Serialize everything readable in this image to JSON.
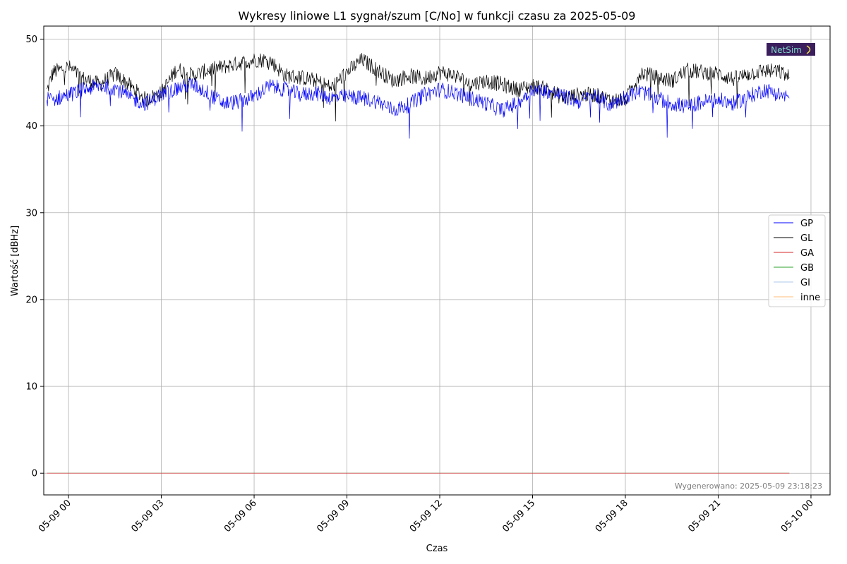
{
  "chart_data": {
    "type": "line",
    "title": "Wykresy liniowe L1 sygnał/szum [C/No] w funkcji czasu za 2025-05-09",
    "xlabel": "Czas",
    "ylabel": "Wartość [dBHz]",
    "x_range": [
      "2025-05-08 23:12",
      "2025-05-10 00:37"
    ],
    "ylim": [
      -2.5,
      51.5
    ],
    "grid": true,
    "legend_position": "right",
    "x_ticks": [
      {
        "t": "2025-05-09 00:00",
        "label": "05-09 00"
      },
      {
        "t": "2025-05-09 03:00",
        "label": "05-09 03"
      },
      {
        "t": "2025-05-09 06:00",
        "label": "05-09 06"
      },
      {
        "t": "2025-05-09 09:00",
        "label": "05-09 09"
      },
      {
        "t": "2025-05-09 12:00",
        "label": "05-09 12"
      },
      {
        "t": "2025-05-09 15:00",
        "label": "05-09 15"
      },
      {
        "t": "2025-05-09 18:00",
        "label": "05-09 18"
      },
      {
        "t": "2025-05-09 21:00",
        "label": "05-09 21"
      },
      {
        "t": "2025-05-10 00:00",
        "label": "05-10 00"
      }
    ],
    "y_ticks": [
      0,
      10,
      20,
      30,
      40,
      50
    ],
    "series": [
      {
        "name": "GP",
        "color": "#0000ff",
        "x": [
          "2025-05-08 23:18",
          "2025-05-08 23:30",
          "2025-05-09 00:00",
          "2025-05-09 00:30",
          "2025-05-09 01:00",
          "2025-05-09 01:30",
          "2025-05-09 02:00",
          "2025-05-09 02:30",
          "2025-05-09 03:00",
          "2025-05-09 03:30",
          "2025-05-09 04:00",
          "2025-05-09 04:30",
          "2025-05-09 05:00",
          "2025-05-09 05:30",
          "2025-05-09 06:00",
          "2025-05-09 06:30",
          "2025-05-09 07:00",
          "2025-05-09 07:30",
          "2025-05-09 08:00",
          "2025-05-09 08:30",
          "2025-05-09 09:00",
          "2025-05-09 09:30",
          "2025-05-09 10:00",
          "2025-05-09 10:30",
          "2025-05-09 11:00",
          "2025-05-09 11:30",
          "2025-05-09 12:00",
          "2025-05-09 12:30",
          "2025-05-09 13:00",
          "2025-05-09 13:30",
          "2025-05-09 14:00",
          "2025-05-09 14:30",
          "2025-05-09 15:00",
          "2025-05-09 15:30",
          "2025-05-09 16:00",
          "2025-05-09 16:30",
          "2025-05-09 17:00",
          "2025-05-09 17:30",
          "2025-05-09 18:00",
          "2025-05-09 18:30",
          "2025-05-09 19:00",
          "2025-05-09 19:30",
          "2025-05-09 20:00",
          "2025-05-09 20:30",
          "2025-05-09 21:00",
          "2025-05-09 21:30",
          "2025-05-09 22:00",
          "2025-05-09 22:30",
          "2025-05-09 23:00",
          "2025-05-09 23:18"
        ],
        "y": [
          43.2,
          43.0,
          43.6,
          44.2,
          44.6,
          44.4,
          43.2,
          42.6,
          43.6,
          44.3,
          44.8,
          43.8,
          42.6,
          42.8,
          43.4,
          44.6,
          44.2,
          43.6,
          43.8,
          43.2,
          43.4,
          43.2,
          42.8,
          41.8,
          42.4,
          43.6,
          44.2,
          43.8,
          43.2,
          42.6,
          41.8,
          42.6,
          44.2,
          44.0,
          43.4,
          42.8,
          43.6,
          42.4,
          43.4,
          44.0,
          43.2,
          42.6,
          42.2,
          42.8,
          43.0,
          42.6,
          43.4,
          44.2,
          43.6,
          43.2
        ]
      },
      {
        "name": "GL",
        "color": "#000000",
        "x": [
          "2025-05-08 23:18",
          "2025-05-08 23:30",
          "2025-05-09 00:00",
          "2025-05-09 00:30",
          "2025-05-09 01:00",
          "2025-05-09 01:30",
          "2025-05-09 02:00",
          "2025-05-09 02:30",
          "2025-05-09 03:00",
          "2025-05-09 03:30",
          "2025-05-09 04:00",
          "2025-05-09 04:30",
          "2025-05-09 05:00",
          "2025-05-09 05:30",
          "2025-05-09 06:00",
          "2025-05-09 06:30",
          "2025-05-09 07:00",
          "2025-05-09 07:30",
          "2025-05-09 08:00",
          "2025-05-09 08:30",
          "2025-05-09 09:00",
          "2025-05-09 09:30",
          "2025-05-09 10:00",
          "2025-05-09 10:30",
          "2025-05-09 11:00",
          "2025-05-09 11:30",
          "2025-05-09 12:00",
          "2025-05-09 12:30",
          "2025-05-09 13:00",
          "2025-05-09 13:30",
          "2025-05-09 14:00",
          "2025-05-09 14:30",
          "2025-05-09 15:00",
          "2025-05-09 15:30",
          "2025-05-09 16:00",
          "2025-05-09 16:30",
          "2025-05-09 17:00",
          "2025-05-09 17:30",
          "2025-05-09 18:00",
          "2025-05-09 18:30",
          "2025-05-09 19:00",
          "2025-05-09 19:30",
          "2025-05-09 20:00",
          "2025-05-09 20:30",
          "2025-05-09 21:00",
          "2025-05-09 21:30",
          "2025-05-09 22:00",
          "2025-05-09 22:30",
          "2025-05-09 23:00",
          "2025-05-09 23:18"
        ],
        "y": [
          44.0,
          46.2,
          46.8,
          45.4,
          44.8,
          46.0,
          44.6,
          43.0,
          43.8,
          46.6,
          45.8,
          46.4,
          46.8,
          47.2,
          47.6,
          47.6,
          45.8,
          45.6,
          45.2,
          44.4,
          46.2,
          47.6,
          46.4,
          45.2,
          45.8,
          45.4,
          46.2,
          45.8,
          44.8,
          45.2,
          44.8,
          44.2,
          44.6,
          44.2,
          43.2,
          43.6,
          43.6,
          43.0,
          43.0,
          46.2,
          45.6,
          45.2,
          46.4,
          46.2,
          46.0,
          45.4,
          46.0,
          46.4,
          46.2,
          45.6
        ]
      },
      {
        "name": "GA",
        "color": "#d62728",
        "x": [
          "2025-05-08 23:18",
          "2025-05-09 23:18"
        ],
        "y": [
          0,
          0
        ]
      },
      {
        "name": "GB",
        "color": "#2ca02c",
        "x": [
          "2025-05-08 23:18",
          "2025-05-09 23:18"
        ],
        "y": [
          0,
          0
        ]
      },
      {
        "name": "GI",
        "color": "#aec7e8",
        "x": [
          "2025-05-08 23:18",
          "2025-05-09 23:18"
        ],
        "y": [
          0,
          0
        ]
      },
      {
        "name": "inne",
        "color": "#ffbb78",
        "x": [
          "2025-05-08 23:18",
          "2025-05-09 23:18"
        ],
        "y": [
          0,
          0
        ]
      }
    ],
    "footer": "Wygenerowano: 2025-05-09 23:18:23",
    "logo_text": "NetSim"
  }
}
